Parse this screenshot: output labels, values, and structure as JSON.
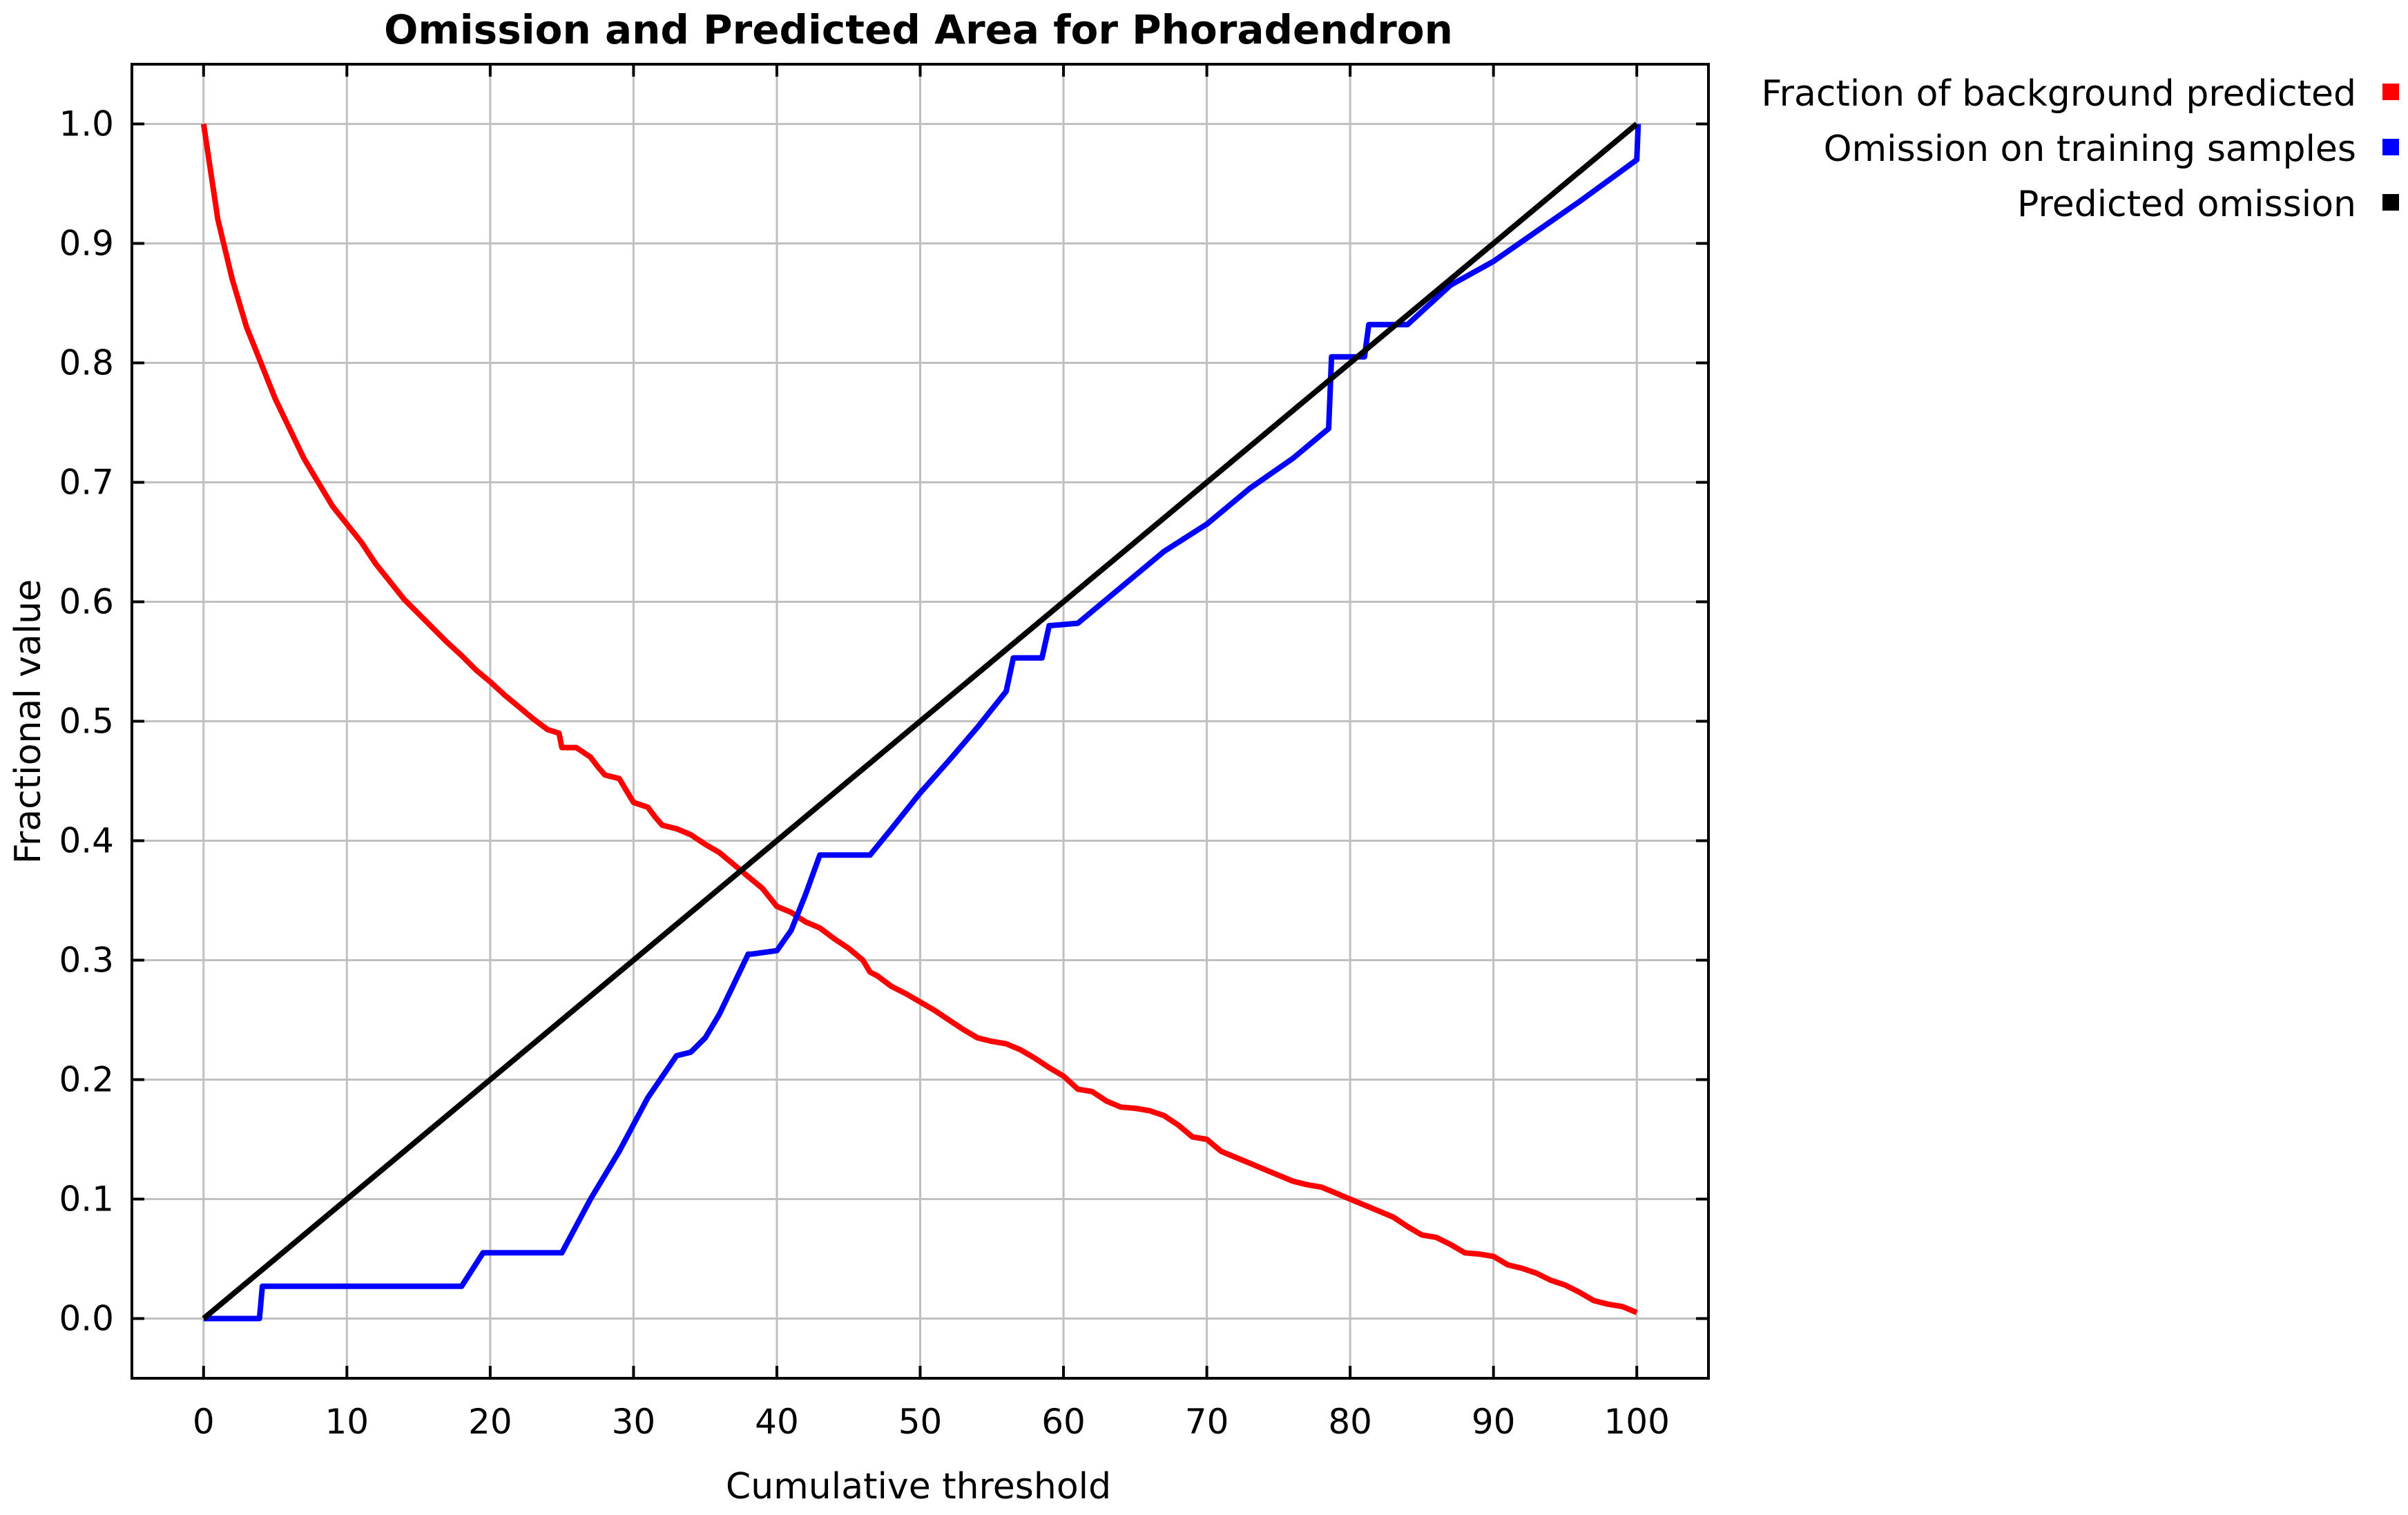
{
  "chart_data": {
    "type": "line",
    "title": "Omission and Predicted Area for Phoradendron",
    "xlabel": "Cumulative threshold",
    "ylabel": "Fractional value",
    "xlim": [
      -5,
      105
    ],
    "ylim": [
      -0.05,
      1.05
    ],
    "xticks": [
      0,
      10,
      20,
      30,
      40,
      50,
      60,
      70,
      80,
      90,
      100
    ],
    "xtick_labels": [
      "0",
      "10",
      "20",
      "30",
      "40",
      "50",
      "60",
      "70",
      "80",
      "90",
      "100"
    ],
    "yticks": [
      0.0,
      0.1,
      0.2,
      0.3,
      0.4,
      0.5,
      0.6,
      0.7,
      0.8,
      0.9,
      1.0
    ],
    "ytick_labels": [
      "0.0",
      "0.1",
      "0.2",
      "0.3",
      "0.4",
      "0.5",
      "0.6",
      "0.7",
      "0.8",
      "0.9",
      "1.0"
    ],
    "grid": true,
    "legend_position": "top-right, outside plot",
    "series": [
      {
        "name": "Fraction of background predicted",
        "color": "#ff0000",
        "x": [
          0,
          1,
          2,
          3,
          4,
          5,
          6,
          7,
          8,
          9,
          10,
          11,
          12,
          13,
          14,
          15,
          16,
          17,
          18,
          19,
          20,
          21,
          22,
          23,
          24,
          24.8,
          25,
          26,
          27,
          27.5,
          28,
          29,
          29.5,
          30,
          31,
          31.5,
          32,
          33,
          34,
          35,
          36,
          37,
          38,
          39,
          40,
          41,
          42,
          43,
          44,
          45,
          46,
          46.5,
          47,
          48,
          49,
          50,
          51,
          52,
          53,
          54,
          55,
          56,
          57,
          58,
          59,
          60,
          61,
          62,
          63,
          64,
          65,
          66,
          67,
          68,
          69,
          70,
          71,
          72,
          73,
          74,
          75,
          76,
          77,
          78,
          79,
          80,
          81,
          82,
          83,
          84,
          85,
          86,
          87,
          88,
          89,
          90,
          91,
          92,
          93,
          94,
          95,
          96,
          97,
          98,
          99,
          100
        ],
        "y": [
          1.0,
          0.92,
          0.87,
          0.83,
          0.8,
          0.77,
          0.745,
          0.72,
          0.7,
          0.68,
          0.665,
          0.65,
          0.632,
          0.617,
          0.602,
          0.59,
          0.578,
          0.566,
          0.555,
          0.543,
          0.533,
          0.522,
          0.512,
          0.502,
          0.493,
          0.49,
          0.478,
          0.478,
          0.47,
          0.462,
          0.455,
          0.452,
          0.442,
          0.432,
          0.428,
          0.42,
          0.413,
          0.41,
          0.405,
          0.397,
          0.39,
          0.38,
          0.37,
          0.36,
          0.345,
          0.34,
          0.332,
          0.327,
          0.318,
          0.31,
          0.3,
          0.29,
          0.287,
          0.278,
          0.272,
          0.265,
          0.258,
          0.25,
          0.242,
          0.235,
          0.232,
          0.23,
          0.225,
          0.218,
          0.21,
          0.203,
          0.192,
          0.19,
          0.182,
          0.177,
          0.176,
          0.174,
          0.17,
          0.162,
          0.152,
          0.15,
          0.14,
          0.135,
          0.13,
          0.125,
          0.12,
          0.115,
          0.112,
          0.11,
          0.105,
          0.1,
          0.095,
          0.09,
          0.085,
          0.077,
          0.07,
          0.068,
          0.062,
          0.055,
          0.054,
          0.052,
          0.045,
          0.042,
          0.038,
          0.032,
          0.028,
          0.022,
          0.015,
          0.012,
          0.01,
          0.005
        ]
      },
      {
        "name": "Omission on training samples",
        "color": "#0000ff",
        "x": [
          0,
          3.9,
          4.1,
          18,
          19.5,
          25,
          27,
          29,
          31,
          33,
          34,
          35,
          36,
          37,
          38,
          38.2,
          40,
          41,
          42,
          43,
          46.5,
          48,
          50,
          52,
          54,
          56,
          56.5,
          58.5,
          59,
          61,
          64,
          67,
          70,
          73,
          76,
          78.5,
          78.7,
          81,
          81.3,
          84,
          87,
          90,
          93,
          96,
          100,
          100.1
        ],
        "y": [
          0.0,
          0.0,
          0.027,
          0.027,
          0.055,
          0.055,
          0.1,
          0.14,
          0.185,
          0.22,
          0.223,
          0.235,
          0.255,
          0.28,
          0.305,
          0.305,
          0.308,
          0.325,
          0.355,
          0.388,
          0.388,
          0.41,
          0.44,
          0.467,
          0.495,
          0.525,
          0.553,
          0.553,
          0.58,
          0.582,
          0.612,
          0.642,
          0.665,
          0.695,
          0.72,
          0.745,
          0.805,
          0.805,
          0.832,
          0.832,
          0.865,
          0.885,
          0.91,
          0.935,
          0.97,
          1.0
        ]
      },
      {
        "name": "Predicted omission",
        "color": "#000000",
        "x": [
          0,
          100
        ],
        "y": [
          0.0,
          1.0
        ]
      }
    ]
  }
}
